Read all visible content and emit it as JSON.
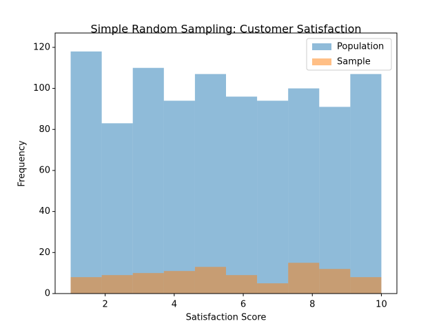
{
  "chart_data": {
    "type": "histogram",
    "title": "Simple Random Sampling: Customer Satisfaction",
    "x_label": "Satisfaction Score",
    "y_label": "Frequency",
    "bins": [
      1,
      1.9,
      2.8,
      3.7,
      4.6,
      5.5,
      6.4,
      7.3,
      8.2,
      9.1,
      10
    ],
    "series": [
      {
        "name": "Population",
        "color": "#1f77b4",
        "values": [
          118,
          83,
          110,
          94,
          107,
          96,
          94,
          100,
          91,
          107
        ]
      },
      {
        "name": "Sample",
        "color": "#ff7f0e",
        "values": [
          8,
          9,
          10,
          11,
          13,
          9,
          5,
          15,
          12,
          8
        ]
      }
    ],
    "opacity": 0.5,
    "xlim": [
      0.55,
      10.45
    ],
    "xticks": [
      2,
      4,
      6,
      8,
      10
    ],
    "ylim": [
      0,
      127
    ],
    "yticks": [
      0,
      20,
      40,
      60,
      80,
      100,
      120
    ],
    "legend": "upper right"
  }
}
